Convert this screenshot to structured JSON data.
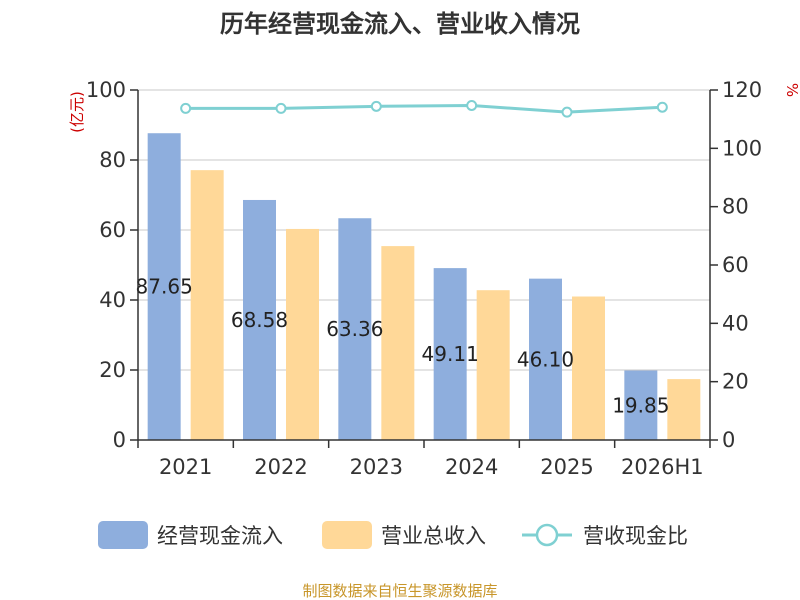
{
  "title": "历年经营现金流入、营业收入情况",
  "source": "制图数据来自恒生聚源数据库",
  "chart_data": {
    "type": "bar",
    "categories": [
      "2021",
      "2022",
      "2023",
      "2024",
      "2025",
      "2026H1"
    ],
    "series": [
      {
        "name": "经营现金流入",
        "type": "bar",
        "axis": "left",
        "color": "#8eaedd",
        "values": [
          87.65,
          68.58,
          63.36,
          49.11,
          46.1,
          19.85
        ]
      },
      {
        "name": "营业总收入",
        "type": "bar",
        "axis": "left",
        "color": "#ffd898",
        "values": [
          77.1,
          60.3,
          55.4,
          42.8,
          41.0,
          17.4
        ]
      },
      {
        "name": "营收现金比",
        "type": "line",
        "axis": "right",
        "color": "#7fd0d2",
        "values": [
          113.7,
          113.7,
          114.4,
          114.7,
          112.4,
          114.1
        ]
      }
    ],
    "data_labels": [
      "87.65",
      "68.58",
      "63.36",
      "49.11",
      "46.10",
      "19.85"
    ],
    "y_left": {
      "unit": "(亿元)",
      "ylim": [
        0,
        100
      ],
      "ticks": [
        0,
        20,
        40,
        60,
        80,
        100
      ]
    },
    "y_right": {
      "unit": "%",
      "ylim": [
        0,
        120
      ],
      "ticks": [
        0,
        20,
        40,
        60,
        80,
        100,
        120
      ]
    },
    "grid": true,
    "legend_position": "bottom"
  }
}
